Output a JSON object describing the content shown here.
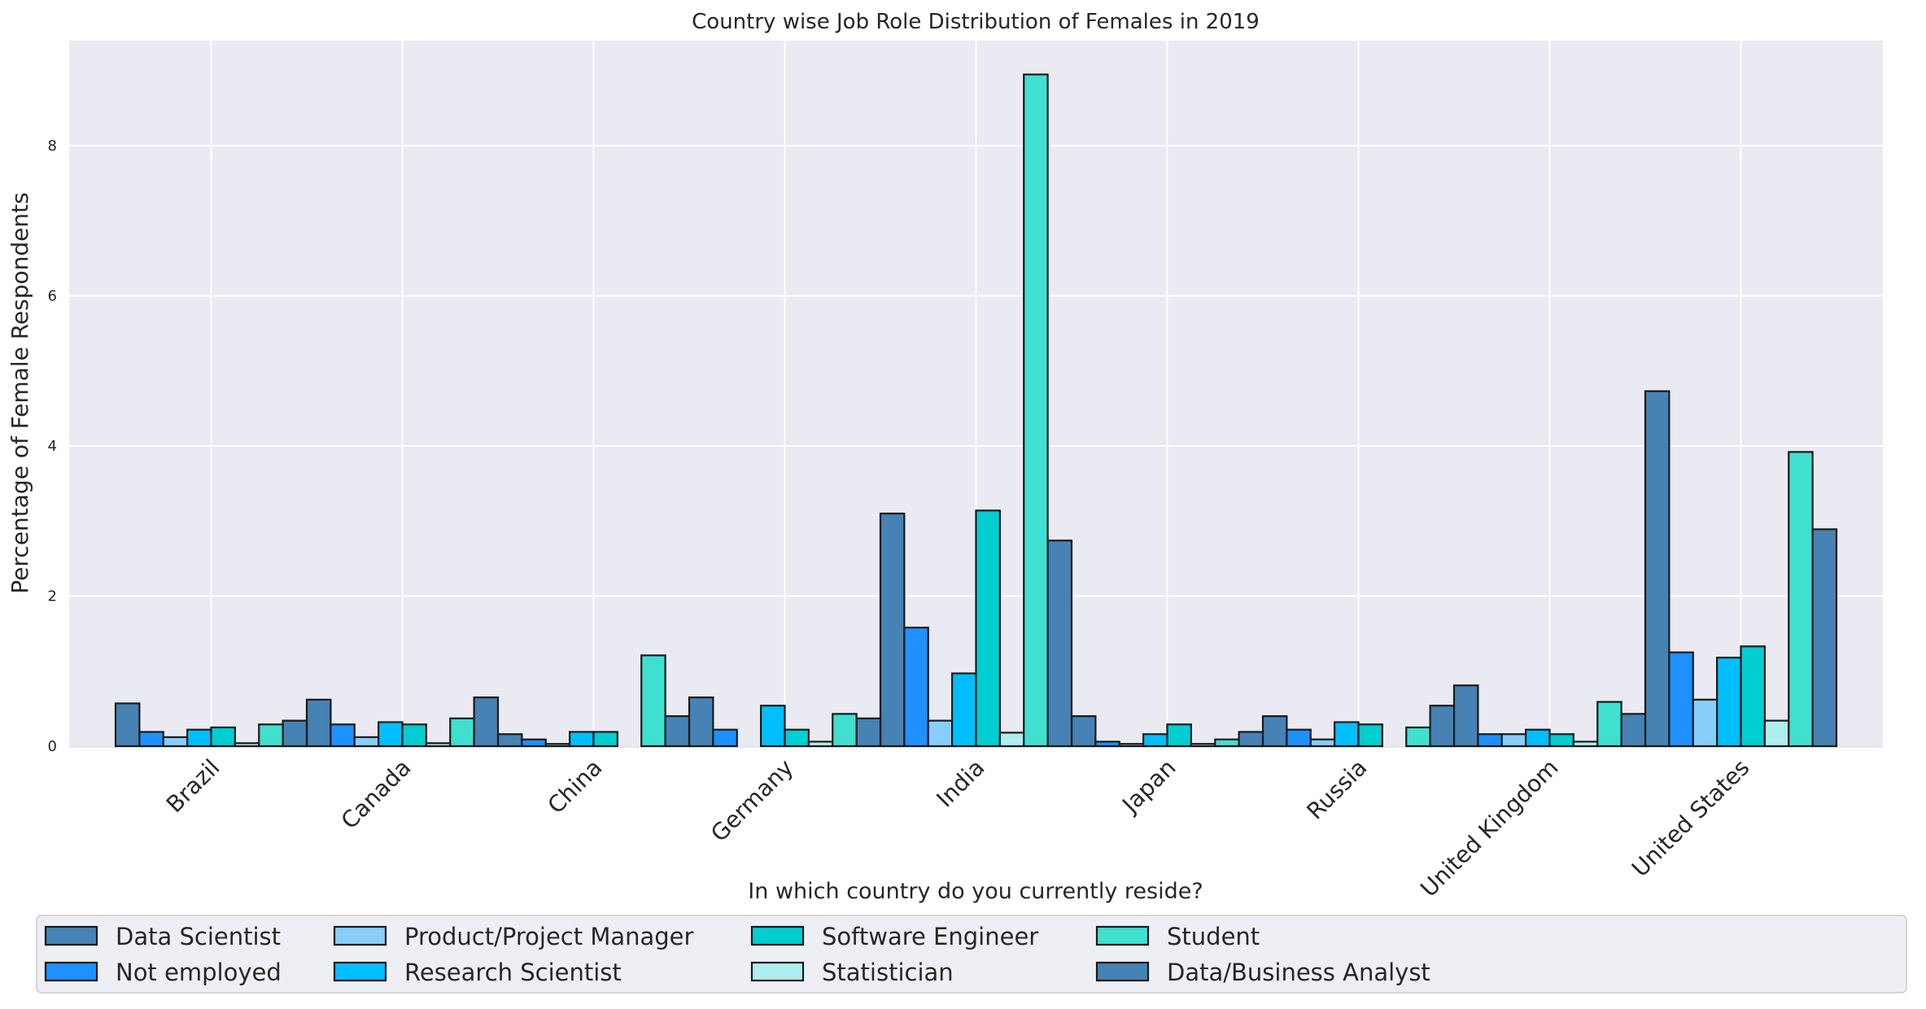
{
  "chart_data": {
    "type": "bar",
    "title": "Country wise Job Role Distribution of Females in 2019",
    "xlabel": "In which country do you currently reside?",
    "ylabel": "Percentage of Female Respondents",
    "ylim": [
      0,
      9.4
    ],
    "yticks": [
      "0",
      "2",
      "4",
      "6",
      "8"
    ],
    "grid": true,
    "legend_placement": "bottom",
    "categories": [
      "Brazil",
      "Canada",
      "China",
      "Germany",
      "India",
      "Japan",
      "Russia",
      "United Kingdom",
      "United States"
    ],
    "series": [
      {
        "name": "Data Scientist",
        "color": "#4682b4",
        "values": [
          0.57,
          0.62,
          0.16,
          0.65,
          3.1,
          0.4,
          0.4,
          0.81,
          4.73
        ]
      },
      {
        "name": "Not employed",
        "color": "#1e90ff",
        "values": [
          0.19,
          0.29,
          0.09,
          0.22,
          1.58,
          0.06,
          0.22,
          0.16,
          1.25
        ]
      },
      {
        "name": "Product/Project Manager",
        "color": "#87cefa",
        "values": [
          0.12,
          0.12,
          0.03,
          0.0,
          0.34,
          0.03,
          0.09,
          0.16,
          0.62
        ]
      },
      {
        "name": "Research Scientist",
        "color": "#00bfff",
        "values": [
          0.22,
          0.32,
          0.19,
          0.54,
          0.97,
          0.16,
          0.32,
          0.22,
          1.18
        ]
      },
      {
        "name": "Software Engineer",
        "color": "#00ced1",
        "values": [
          0.25,
          0.29,
          0.19,
          0.22,
          3.14,
          0.29,
          0.29,
          0.16,
          1.33
        ]
      },
      {
        "name": "Statistician",
        "color": "#afeeee",
        "values": [
          0.04,
          0.04,
          0.0,
          0.06,
          0.18,
          0.03,
          0.0,
          0.06,
          0.34
        ]
      },
      {
        "name": "Student",
        "color": "#40e0d0",
        "values": [
          0.29,
          0.37,
          1.21,
          0.43,
          8.95,
          0.09,
          0.25,
          0.59,
          3.92
        ]
      },
      {
        "name": "Data/Business Analyst",
        "color": "#4682b4",
        "values": [
          0.34,
          0.65,
          0.4,
          0.37,
          2.74,
          0.19,
          0.54,
          0.43,
          2.89
        ]
      }
    ]
  }
}
